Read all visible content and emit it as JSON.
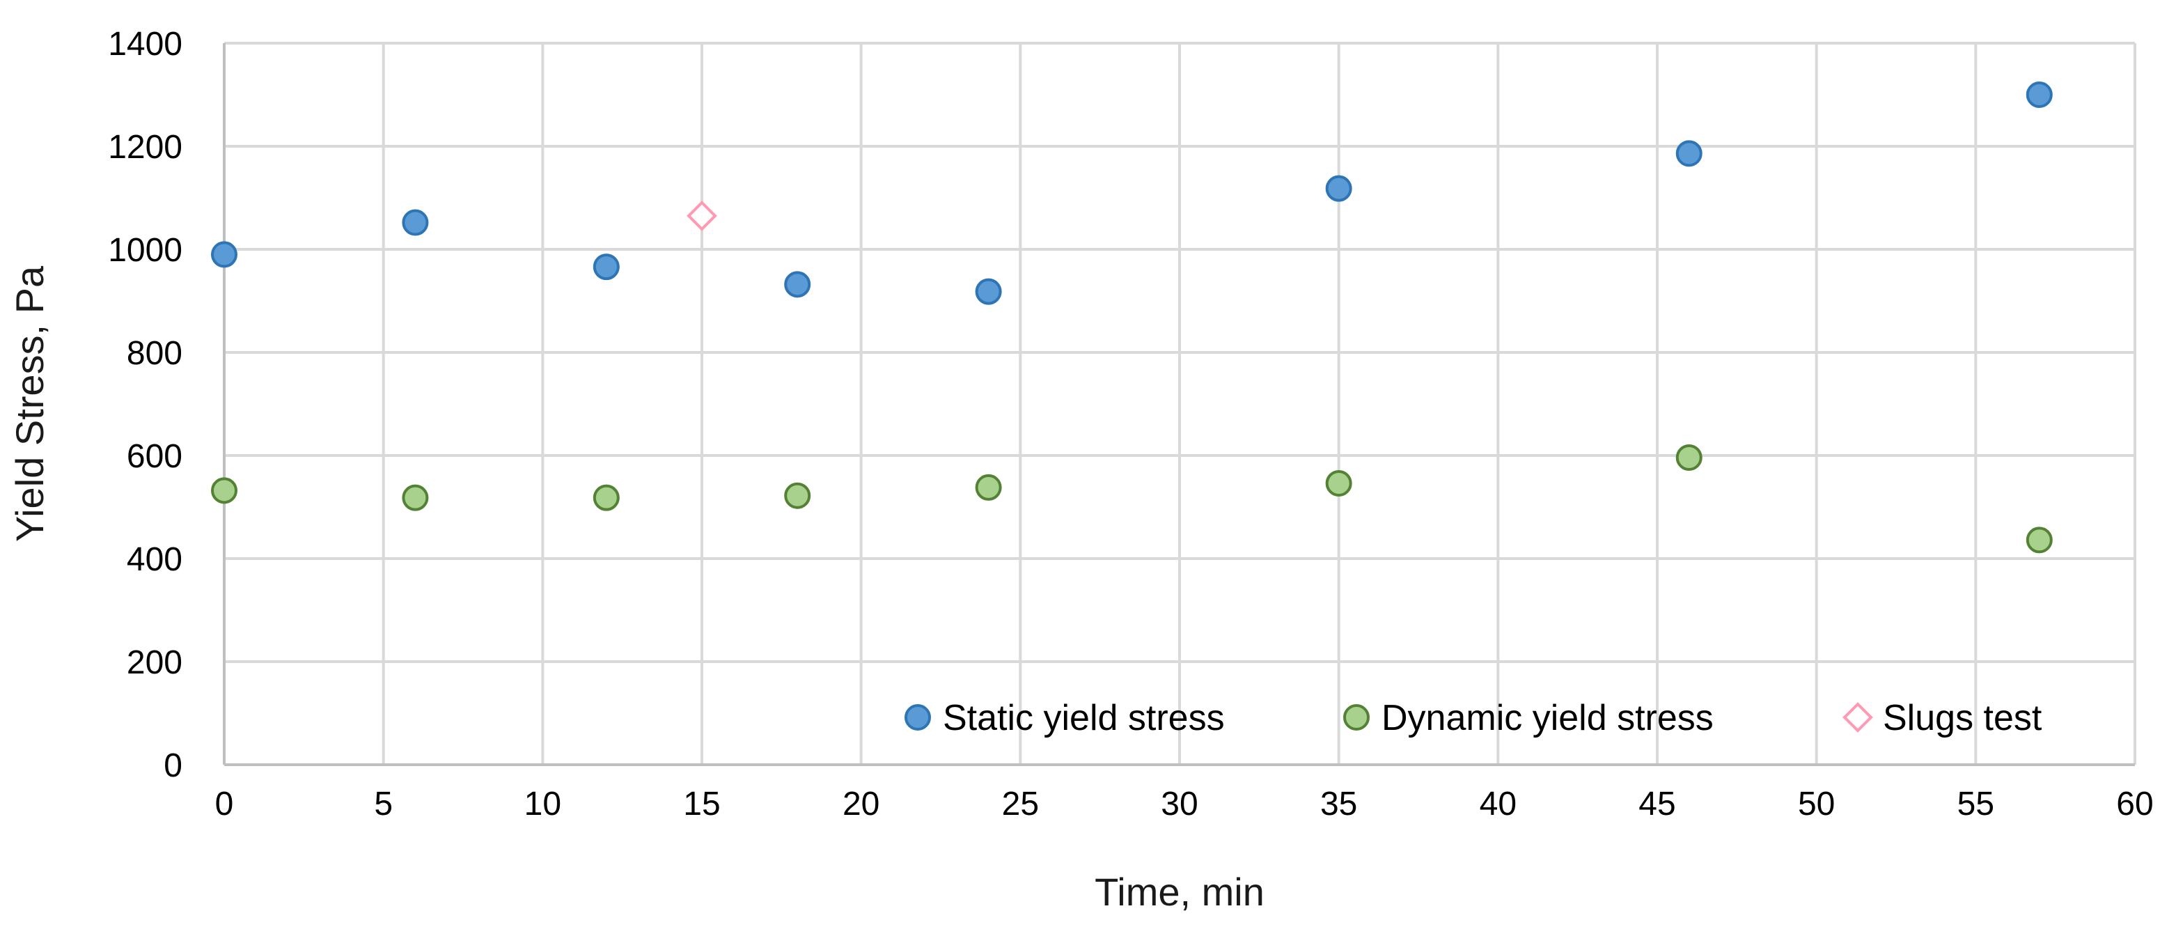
{
  "chart_data": {
    "type": "scatter",
    "title": "",
    "xlabel": "Time, min",
    "ylabel": "Yield Stress, Pa",
    "xlim": [
      0,
      60
    ],
    "ylim": [
      0,
      1400
    ],
    "xticks": [
      0,
      5,
      10,
      15,
      20,
      25,
      30,
      35,
      40,
      45,
      50,
      55,
      60
    ],
    "yticks": [
      0,
      200,
      400,
      600,
      800,
      1000,
      1200,
      1400
    ],
    "grid": true,
    "legend_position": "bottom-right",
    "series": [
      {
        "name": "Static yield stress",
        "marker": "circle",
        "fill": "#5b9bd5",
        "stroke": "#2e75b6",
        "x": [
          0,
          6,
          12,
          18,
          24,
          35,
          46,
          57
        ],
        "y": [
          990,
          1052,
          966,
          932,
          918,
          1118,
          1186,
          1300
        ]
      },
      {
        "name": "Dynamic yield stress",
        "marker": "circle",
        "fill": "#a9d18e",
        "stroke": "#548235",
        "x": [
          0,
          6,
          12,
          18,
          24,
          35,
          46,
          57
        ],
        "y": [
          532,
          518,
          518,
          522,
          538,
          546,
          596,
          436
        ]
      },
      {
        "name": "Slugs test",
        "marker": "diamond",
        "fill": "#ffffff",
        "stroke": "#ff99b4",
        "x": [
          15
        ],
        "y": [
          1065
        ]
      }
    ]
  }
}
